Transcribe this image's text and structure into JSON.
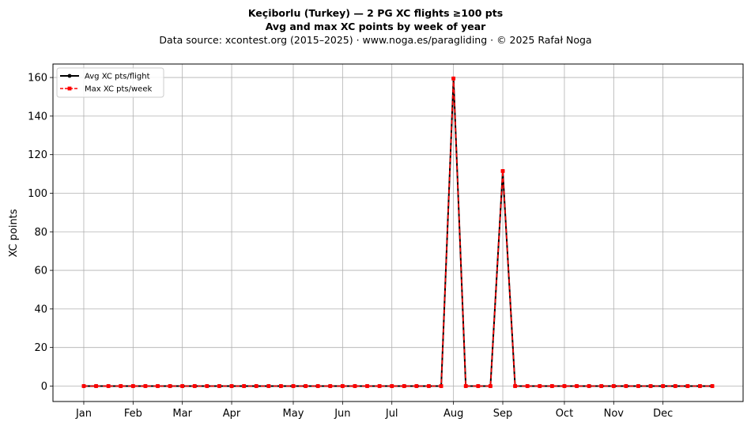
{
  "chart_data": {
    "type": "line",
    "title": "Keçiborlu (Turkey)  —  2 PG XC flights ≥100 pts",
    "subtitle": "Avg and max XC points by week of year",
    "source": "Data source: xcontest.org (2015–2025)  ·  www.noga.es/paragliding  ·  © 2025 Rafał Noga",
    "xlabel": "",
    "ylabel": "XC points",
    "ylim": [
      -8,
      167
    ],
    "yticks": [
      0,
      20,
      40,
      60,
      80,
      100,
      120,
      140,
      160
    ],
    "xlim": [
      -2.5,
      53.5
    ],
    "x_ticks": [
      {
        "label": "Jan",
        "week": 0
      },
      {
        "label": "Feb",
        "week": 4
      },
      {
        "label": "Mar",
        "week": 8
      },
      {
        "label": "Apr",
        "week": 12
      },
      {
        "label": "May",
        "week": 17
      },
      {
        "label": "Jun",
        "week": 21
      },
      {
        "label": "Jul",
        "week": 25
      },
      {
        "label": "Aug",
        "week": 30
      },
      {
        "label": "Sep",
        "week": 34
      },
      {
        "label": "Oct",
        "week": 39
      },
      {
        "label": "Nov",
        "week": 43
      },
      {
        "label": "Dec",
        "week": 47
      }
    ],
    "grid": true,
    "legend_position": "upper-left",
    "x": [
      0,
      1,
      2,
      3,
      4,
      5,
      6,
      7,
      8,
      9,
      10,
      11,
      12,
      13,
      14,
      15,
      16,
      17,
      18,
      19,
      20,
      21,
      22,
      23,
      24,
      25,
      26,
      27,
      28,
      29,
      30,
      31,
      32,
      33,
      34,
      35,
      36,
      37,
      38,
      39,
      40,
      41,
      42,
      43,
      44,
      45,
      46,
      47,
      48,
      49,
      50,
      51
    ],
    "series": [
      {
        "name": "Avg XC pts/flight",
        "color": "#000000",
        "style": "solid",
        "marker": "circle",
        "values": [
          0,
          0,
          0,
          0,
          0,
          0,
          0,
          0,
          0,
          0,
          0,
          0,
          0,
          0,
          0,
          0,
          0,
          0,
          0,
          0,
          0,
          0,
          0,
          0,
          0,
          0,
          0,
          0,
          0,
          0,
          159.5,
          0,
          0,
          0,
          111.5,
          0,
          0,
          0,
          0,
          0,
          0,
          0,
          0,
          0,
          0,
          0,
          0,
          0,
          0,
          0,
          0,
          0
        ]
      },
      {
        "name": "Max XC pts/week",
        "color": "#ff0000",
        "style": "dashed",
        "marker": "square",
        "values": [
          0,
          0,
          0,
          0,
          0,
          0,
          0,
          0,
          0,
          0,
          0,
          0,
          0,
          0,
          0,
          0,
          0,
          0,
          0,
          0,
          0,
          0,
          0,
          0,
          0,
          0,
          0,
          0,
          0,
          0,
          159.5,
          0,
          0,
          0,
          111.5,
          0,
          0,
          0,
          0,
          0,
          0,
          0,
          0,
          0,
          0,
          0,
          0,
          0,
          0,
          0,
          0,
          0
        ]
      }
    ]
  }
}
